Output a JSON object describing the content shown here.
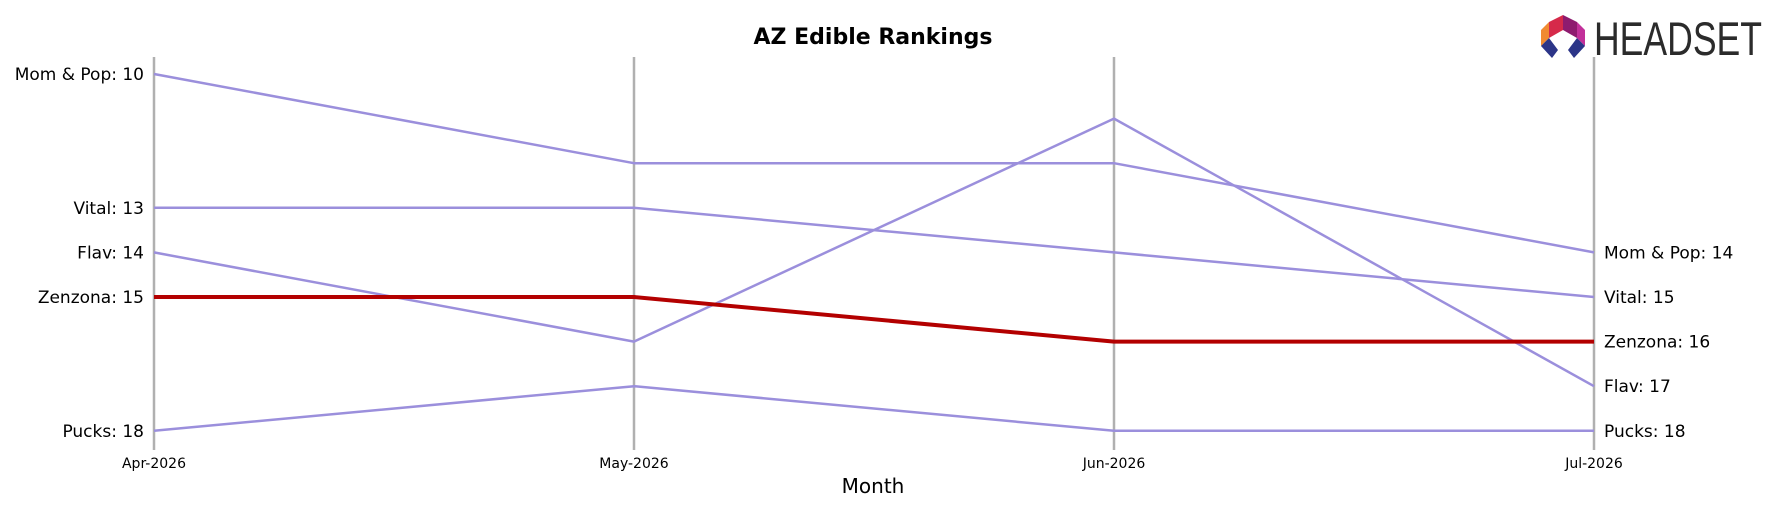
{
  "chart_data": {
    "type": "line",
    "title": "AZ Edible Rankings",
    "xlabel": "Month",
    "ylabel": "",
    "x": [
      "Apr-2026",
      "May-2026",
      "Jun-2026",
      "Jul-2026"
    ],
    "y_inverted": true,
    "ylim": [
      9.6,
      18.4
    ],
    "grid": "vertical lines at each month",
    "series": [
      {
        "name": "Mom & Pop",
        "values": [
          10,
          12,
          12,
          14
        ],
        "color": "#9b8fdc",
        "highlight": false
      },
      {
        "name": "Vital",
        "values": [
          13,
          13,
          14,
          15
        ],
        "color": "#9b8fdc",
        "highlight": false
      },
      {
        "name": "Flav",
        "values": [
          14,
          16,
          11,
          17
        ],
        "color": "#9b8fdc",
        "highlight": false
      },
      {
        "name": "Zenzona",
        "values": [
          15,
          15,
          16,
          16
        ],
        "color": "#b30000",
        "highlight": true
      },
      {
        "name": "Pucks",
        "values": [
          18,
          17,
          18,
          18
        ],
        "color": "#9b8fdc",
        "highlight": false
      }
    ],
    "left_labels": [
      {
        "series": "Mom & Pop",
        "text": "Mom & Pop: 10"
      },
      {
        "series": "Vital",
        "text": "Vital: 13"
      },
      {
        "series": "Flav",
        "text": "Flav: 14"
      },
      {
        "series": "Zenzona",
        "text": "Zenzona: 15"
      },
      {
        "series": "Pucks",
        "text": "Pucks: 18"
      }
    ],
    "right_labels": [
      {
        "series": "Mom & Pop",
        "text": "Mom & Pop: 14"
      },
      {
        "series": "Vital",
        "text": "Vital: 15"
      },
      {
        "series": "Zenzona",
        "text": "Zenzona: 16"
      },
      {
        "series": "Flav",
        "text": "Flav: 17"
      },
      {
        "series": "Pucks",
        "text": "Pucks: 18"
      }
    ]
  },
  "logo": {
    "text": "HEADSET"
  },
  "colors": {
    "highlight": "#b30000",
    "other": "#9b8fdc",
    "gridline": "#b0b0b0"
  }
}
